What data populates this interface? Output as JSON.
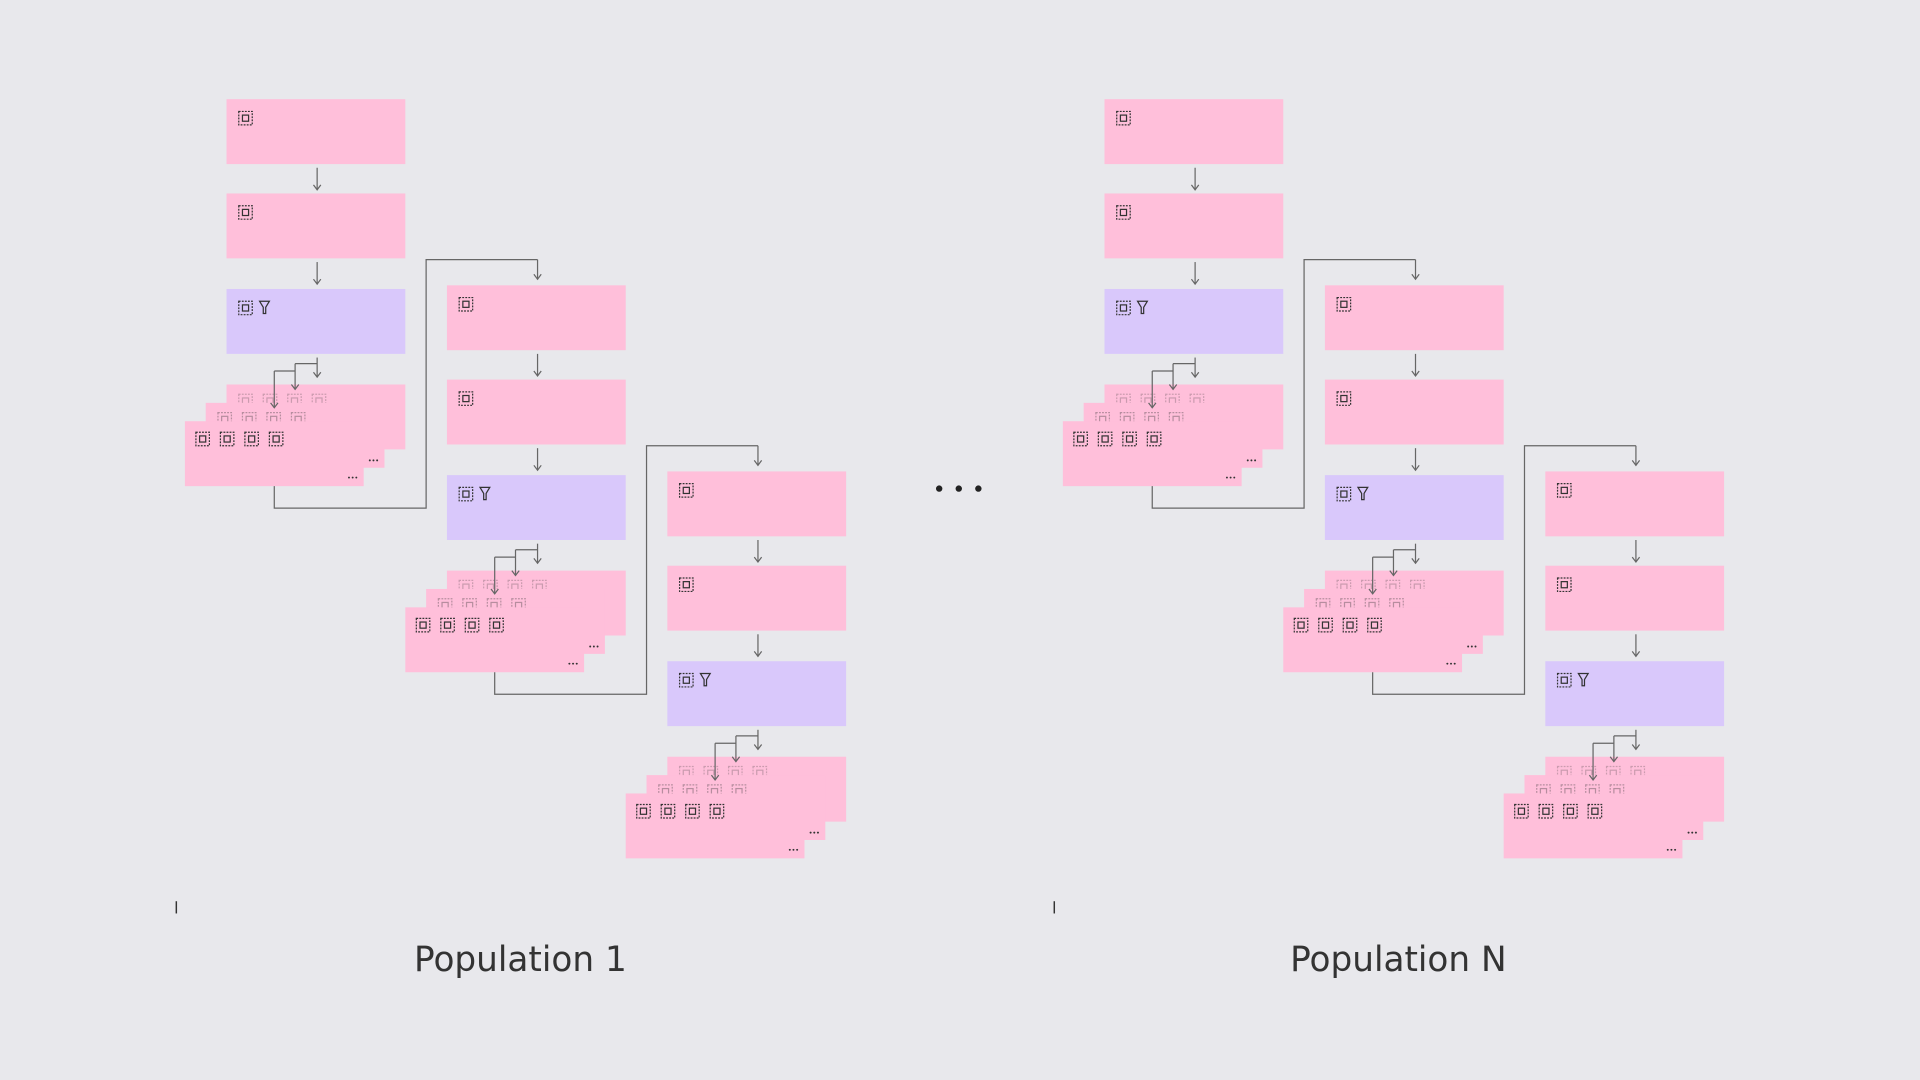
{
  "populations": [
    {
      "label": "Population 1"
    },
    {
      "label": "Population N"
    }
  ]
}
